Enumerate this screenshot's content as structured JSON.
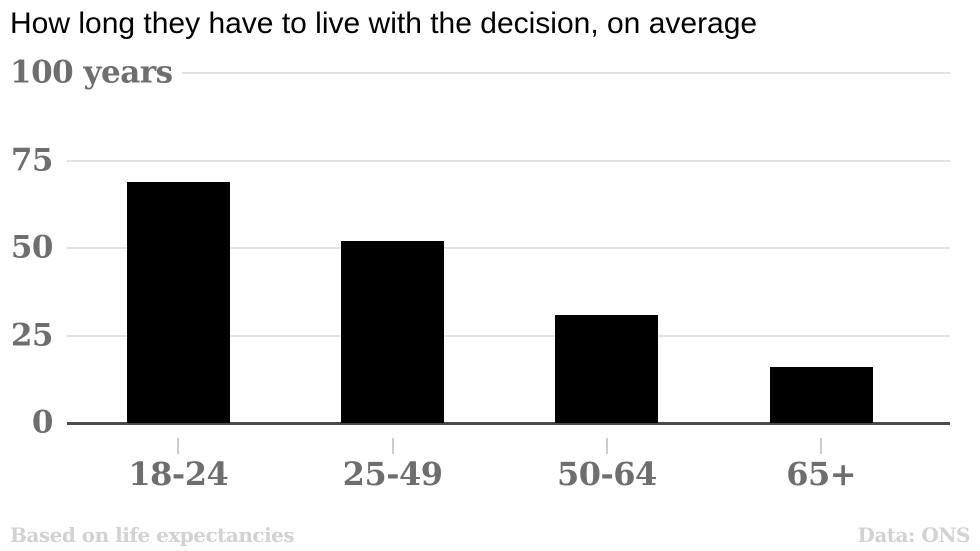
{
  "chart_data": {
    "type": "bar",
    "title": "How long they have to live with the decision, on average",
    "categories": [
      "18-24",
      "25-49",
      "50-64",
      "65+"
    ],
    "values": [
      69,
      52,
      31,
      16
    ],
    "xlabel": "",
    "ylabel": "years",
    "ylabel_top": "100 years",
    "ylim": [
      0,
      100
    ],
    "y_ticks": [
      {
        "value": 0,
        "label": "0"
      },
      {
        "value": 25,
        "label": "25"
      },
      {
        "value": 50,
        "label": "50"
      },
      {
        "value": 75,
        "label": "75"
      },
      {
        "value": 100,
        "label": "100 years"
      }
    ],
    "grid": "horizontal-only",
    "legend": "none",
    "bar_color": "#000000"
  },
  "footer": {
    "left": "Based on life expectancies",
    "right": "Data: ONS"
  },
  "colors": {
    "title": "#000000",
    "axis_label": "#6e6e6e",
    "gridline": "#e2e2e2",
    "baseline": "#4a4a4a",
    "x_tick_mark": "#cccccc",
    "bar": "#000000",
    "footer": "#d2d2d2",
    "background": "#ffffff"
  }
}
